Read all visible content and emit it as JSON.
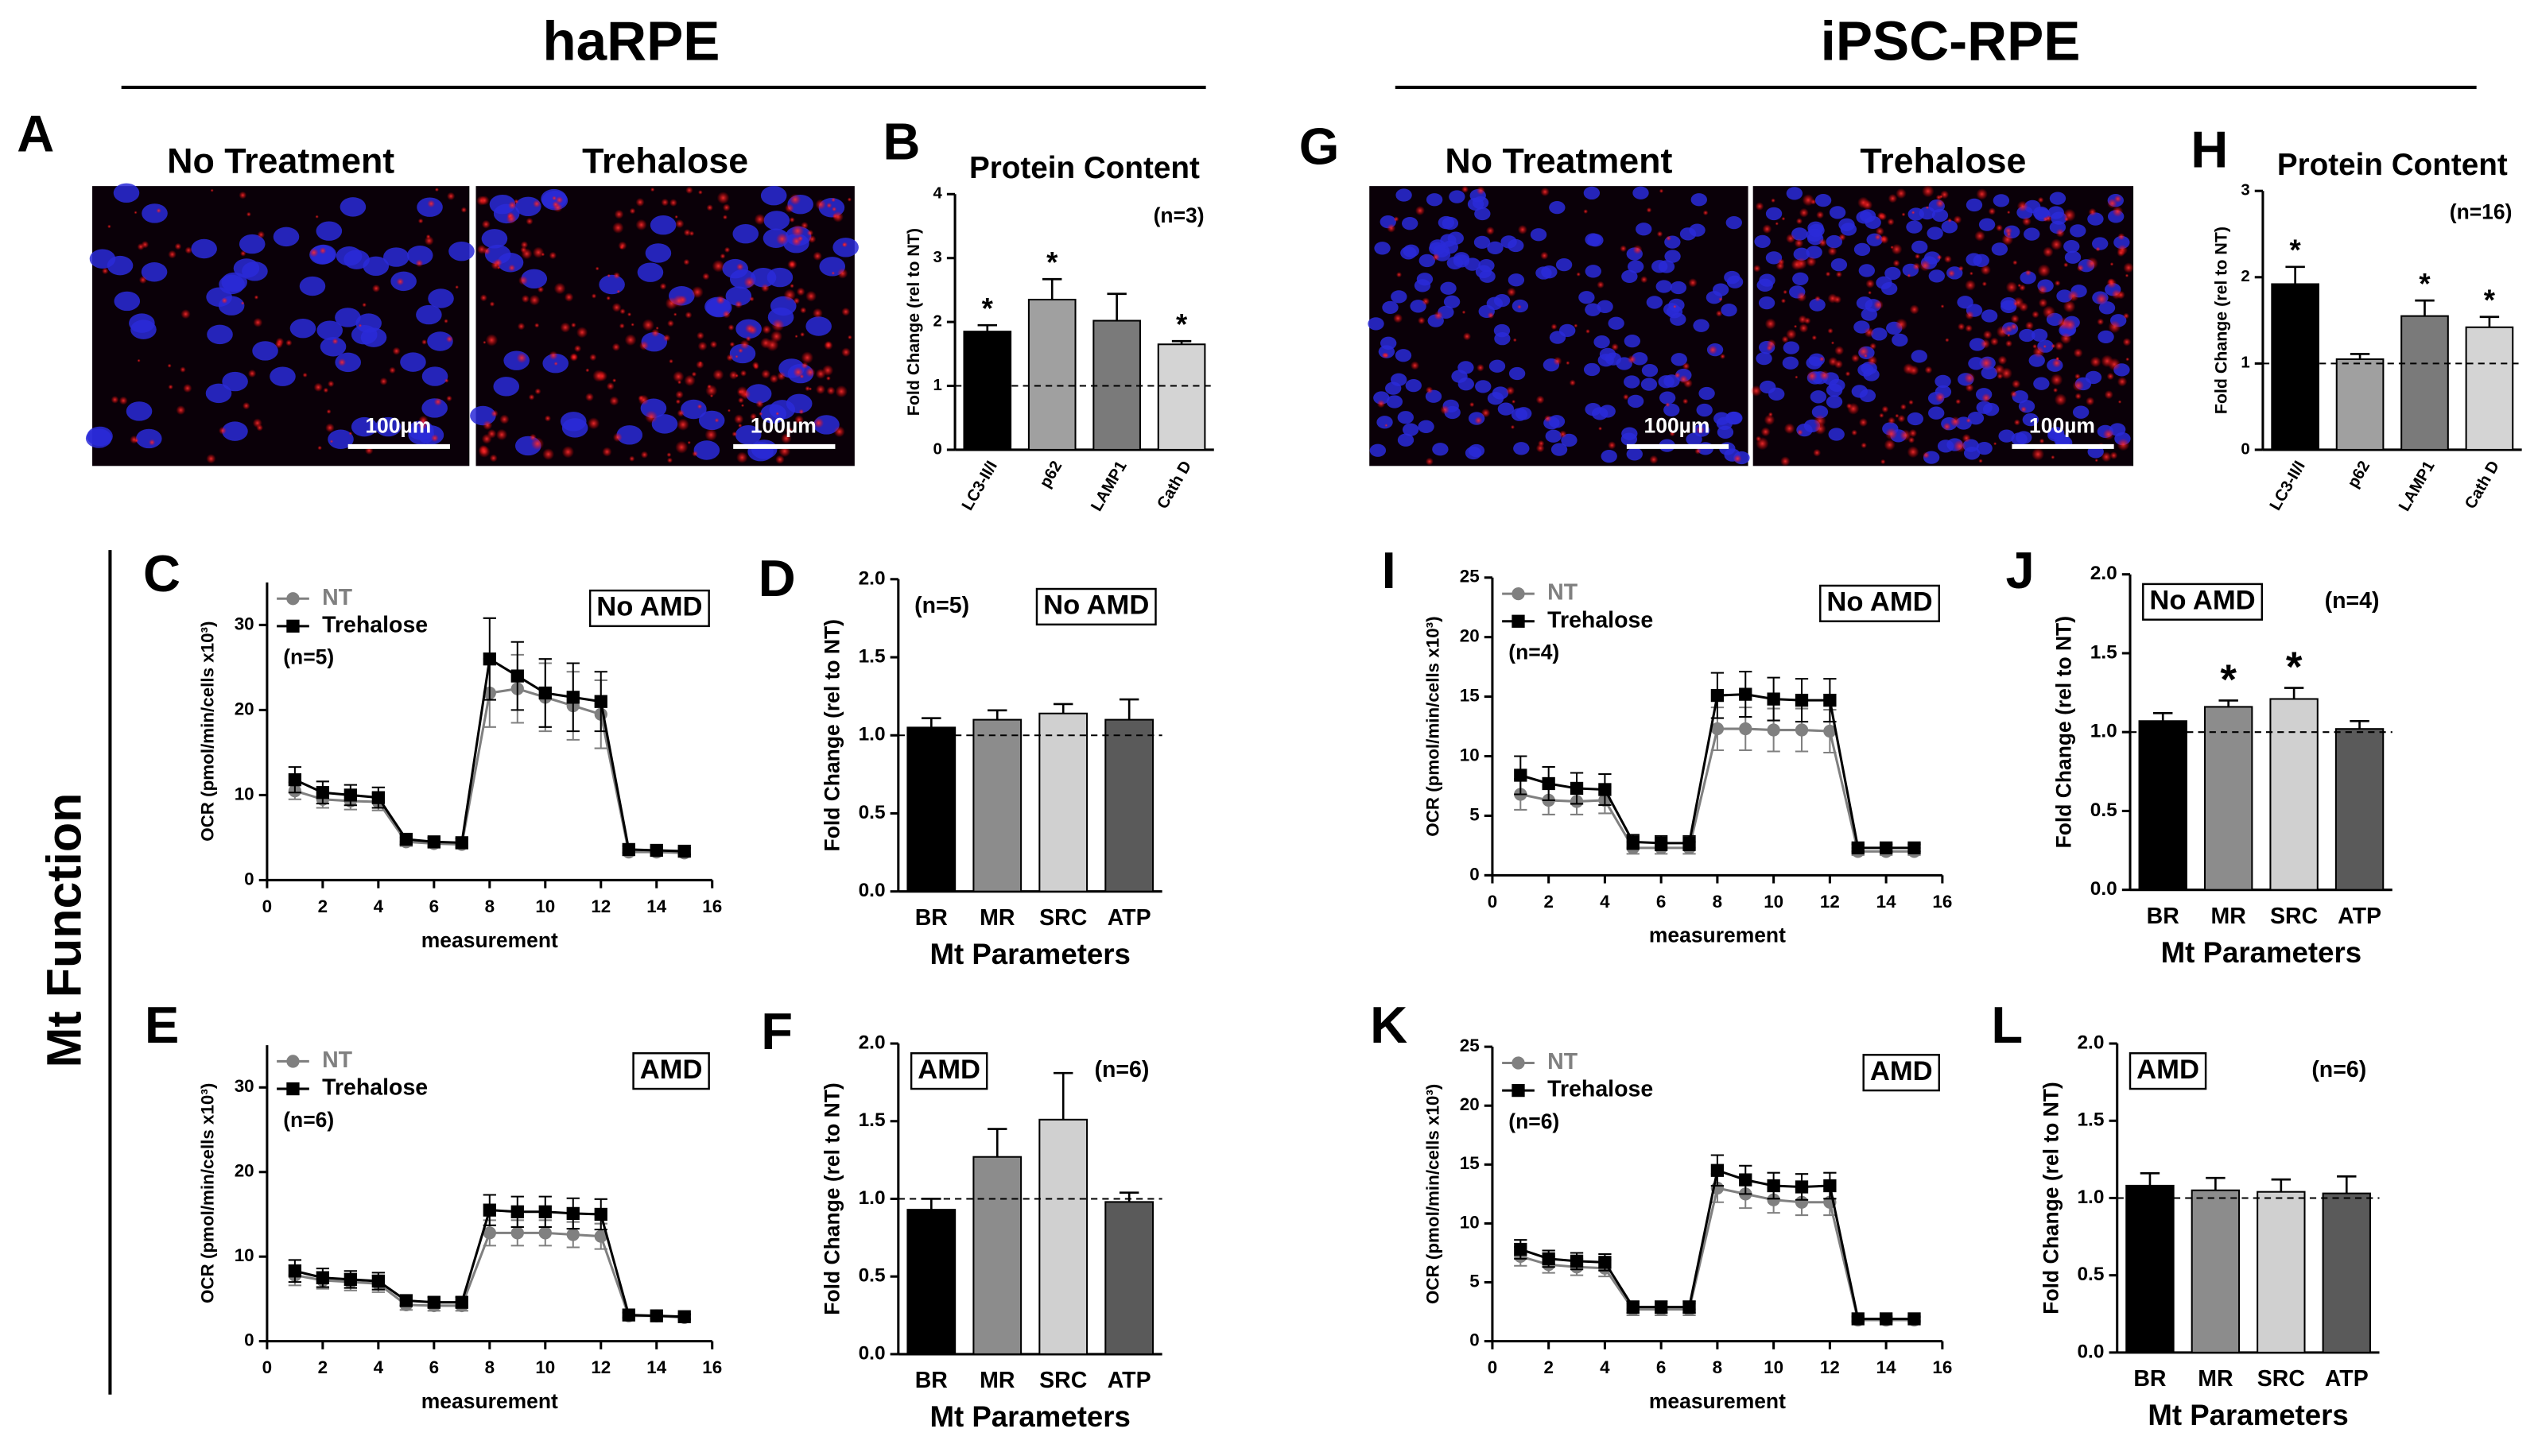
{
  "headings": [
    "haRPE",
    "iPSC-RPE"
  ],
  "section_label": "Mt Function",
  "images": [
    {
      "panel": "A",
      "labels": [
        "No Treatment",
        "Trehalose"
      ],
      "scale_bar": "100µm"
    },
    {
      "panel": "G",
      "labels": [
        "No Treatment",
        "Trehalose"
      ],
      "scale_bar": "100µm"
    }
  ],
  "chart_data": [
    {
      "type": "bar",
      "panel": "B",
      "title": "Protein Content",
      "y_label": "Fold Change (rel to NT)",
      "n_label": "(n=3)",
      "categories": [
        "LC3-II/I",
        "p62",
        "LAMP1",
        "Cath D"
      ],
      "values": [
        1.85,
        2.35,
        2.02,
        1.65
      ],
      "errors": [
        0.1,
        0.32,
        0.42,
        0.05
      ],
      "significance": [
        "*",
        "*",
        null,
        "*"
      ],
      "colors": [
        "#000000",
        "#a0a0a0",
        "#7a7a7a",
        "#d4d4d4"
      ],
      "ylim": [
        0,
        4
      ],
      "yticks": [
        0,
        1,
        2,
        3,
        4
      ],
      "ref_line": 1
    },
    {
      "type": "bar",
      "panel": "H",
      "title": "Protein Content",
      "y_label": "Fold Change (rel to NT)",
      "n_label": "(n=16)",
      "categories": [
        "LC3-II/I",
        "p62",
        "LAMP1",
        "Cath D"
      ],
      "values": [
        1.92,
        1.05,
        1.55,
        1.42
      ],
      "errors": [
        0.2,
        0.06,
        0.18,
        0.12
      ],
      "significance": [
        "*",
        null,
        "*",
        "*"
      ],
      "colors": [
        "#000000",
        "#a0a0a0",
        "#7a7a7a",
        "#d4d4d4"
      ],
      "ylim": [
        0,
        3
      ],
      "yticks": [
        0,
        1,
        2,
        3
      ],
      "ref_line": 1
    },
    {
      "type": "line",
      "panel": "C",
      "box_label": "No AMD",
      "n_label": "(n=5)",
      "x_label": "measurement",
      "y_label": "OCR (pmol/min/cells x10³)",
      "x": [
        1,
        2,
        3,
        4,
        5,
        6,
        7,
        8,
        9,
        10,
        11,
        12,
        13,
        14,
        15
      ],
      "series": [
        {
          "name": "NT",
          "color": "#808080",
          "marker": "circle",
          "values": [
            10.5,
            9.5,
            9.3,
            9.2,
            4.5,
            4.3,
            4.2,
            22,
            22.5,
            21.5,
            20.5,
            19.5,
            3.3,
            3.3,
            3.2
          ],
          "errors": [
            1,
            1,
            1,
            1,
            0.5,
            0.5,
            0.5,
            4,
            4,
            4,
            4,
            4,
            0.4,
            0.4,
            0.4
          ]
        },
        {
          "name": "Trehalose",
          "color": "#000000",
          "marker": "square",
          "values": [
            11.8,
            10.3,
            10,
            9.7,
            4.8,
            4.5,
            4.4,
            26,
            24,
            22,
            21.5,
            21,
            3.6,
            3.5,
            3.4
          ],
          "errors": [
            1.5,
            1.3,
            1.2,
            1.2,
            0.6,
            0.5,
            0.5,
            4.8,
            4,
            4,
            4,
            3.5,
            0.4,
            0.4,
            0.4
          ]
        }
      ],
      "xlim": [
        0,
        16
      ],
      "xticks": [
        0,
        2,
        4,
        6,
        8,
        10,
        12,
        14,
        16
      ],
      "ylim": [
        0,
        35
      ],
      "yticks": [
        0,
        10,
        20,
        30
      ]
    },
    {
      "type": "bar",
      "panel": "D",
      "box_label": "No AMD",
      "box_corner": "right",
      "n_label": "(n=5)",
      "x_label": "Mt Parameters",
      "y_label": "Fold Change (rel to NT)",
      "categories": [
        "BR",
        "MR",
        "SRC",
        "ATP"
      ],
      "values": [
        1.05,
        1.1,
        1.14,
        1.1
      ],
      "errors": [
        0.06,
        0.06,
        0.06,
        0.13
      ],
      "colors": [
        "#000000",
        "#8c8c8c",
        "#d0d0d0",
        "#5a5a5a"
      ],
      "ylim": [
        0,
        2
      ],
      "yticks": [
        {
          "value": 0,
          "label": "0.0"
        },
        {
          "value": 0.5,
          "label": "0.5"
        },
        {
          "value": 1,
          "label": "1.0"
        },
        {
          "value": 1.5,
          "label": "1.5"
        },
        {
          "value": 2,
          "label": "2.0"
        }
      ],
      "ref_line": 1
    },
    {
      "type": "line",
      "panel": "E",
      "box_label": "AMD",
      "n_label": "(n=6)",
      "x_label": "measurement",
      "y_label": "OCR (pmol/min/cells x10³)",
      "x": [
        1,
        2,
        3,
        4,
        5,
        6,
        7,
        8,
        9,
        10,
        11,
        12,
        13,
        14,
        15
      ],
      "series": [
        {
          "name": "NT",
          "color": "#808080",
          "marker": "circle",
          "values": [
            7.8,
            7.2,
            7,
            6.8,
            4.3,
            4.2,
            4.2,
            12.8,
            12.8,
            12.8,
            12.6,
            12.4,
            3,
            3,
            2.8
          ],
          "errors": [
            1.2,
            1,
            1,
            1,
            0.6,
            0.6,
            0.6,
            1.5,
            1.5,
            1.5,
            1.5,
            1.5,
            0.3,
            0.3,
            0.3
          ]
        },
        {
          "name": "Trehalose",
          "color": "#000000",
          "marker": "square",
          "values": [
            8.3,
            7.5,
            7.3,
            7.1,
            4.8,
            4.6,
            4.6,
            15.5,
            15.3,
            15.3,
            15.1,
            15,
            3.1,
            3,
            2.9
          ],
          "errors": [
            1.3,
            1.1,
            1,
            1,
            0.6,
            0.6,
            0.6,
            1.8,
            1.8,
            1.8,
            1.8,
            1.8,
            0.3,
            0.3,
            0.3
          ]
        }
      ],
      "xlim": [
        0,
        16
      ],
      "xticks": [
        0,
        2,
        4,
        6,
        8,
        10,
        12,
        14,
        16
      ],
      "ylim": [
        0,
        35
      ],
      "yticks": [
        0,
        10,
        20,
        30
      ]
    },
    {
      "type": "bar",
      "panel": "F",
      "box_label": "AMD",
      "box_corner": "left",
      "n_label": "(n=6)",
      "x_label": "Mt Parameters",
      "y_label": "Fold Change (rel to NT)",
      "categories": [
        "BR",
        "MR",
        "SRC",
        "ATP"
      ],
      "values": [
        0.93,
        1.27,
        1.51,
        0.98
      ],
      "errors": [
        0.07,
        0.18,
        0.3,
        0.06
      ],
      "colors": [
        "#000000",
        "#8c8c8c",
        "#d0d0d0",
        "#5a5a5a"
      ],
      "ylim": [
        0,
        2
      ],
      "yticks": [
        {
          "value": 0,
          "label": "0.0"
        },
        {
          "value": 0.5,
          "label": "0.5"
        },
        {
          "value": 1,
          "label": "1.0"
        },
        {
          "value": 1.5,
          "label": "1.5"
        },
        {
          "value": 2,
          "label": "2.0"
        }
      ],
      "ref_line": 1
    },
    {
      "type": "line",
      "panel": "I",
      "box_label": "No AMD",
      "n_label": "(n=4)",
      "x_label": "measurement",
      "y_label": "OCR (pmol/min/cells x10³)",
      "x": [
        1,
        2,
        3,
        4,
        5,
        6,
        7,
        8,
        9,
        10,
        11,
        12,
        13,
        14,
        15
      ],
      "series": [
        {
          "name": "NT",
          "color": "#808080",
          "marker": "circle",
          "values": [
            6.8,
            6.3,
            6.2,
            6.3,
            2.3,
            2.3,
            2.3,
            12.3,
            12.3,
            12.2,
            12.2,
            12.1,
            2,
            2,
            2
          ],
          "errors": [
            1.3,
            1.2,
            1.1,
            1.1,
            0.5,
            0.5,
            0.5,
            1.8,
            1.8,
            1.8,
            1.8,
            1.8,
            0.3,
            0.3,
            0.3
          ]
        },
        {
          "name": "Trehalose",
          "color": "#000000",
          "marker": "square",
          "values": [
            8.4,
            7.7,
            7.3,
            7.2,
            2.8,
            2.7,
            2.7,
            15.1,
            15.2,
            14.8,
            14.7,
            14.7,
            2.3,
            2.3,
            2.3
          ],
          "errors": [
            1.6,
            1.4,
            1.3,
            1.3,
            0.6,
            0.6,
            0.6,
            1.9,
            1.9,
            1.8,
            1.8,
            1.8,
            0.3,
            0.3,
            0.3
          ]
        }
      ],
      "xlim": [
        0,
        16
      ],
      "xticks": [
        0,
        2,
        4,
        6,
        8,
        10,
        12,
        14,
        16
      ],
      "ylim": [
        0,
        25
      ],
      "yticks": [
        0,
        5,
        10,
        15,
        20,
        25
      ]
    },
    {
      "type": "bar",
      "panel": "J",
      "box_label": "No AMD",
      "box_corner": "left",
      "n_label": "(n=4)",
      "x_label": "Mt Parameters",
      "y_label": "Fold Change (rel to NT)",
      "categories": [
        "BR",
        "MR",
        "SRC",
        "ATP"
      ],
      "values": [
        1.07,
        1.16,
        1.21,
        1.02
      ],
      "errors": [
        0.05,
        0.04,
        0.07,
        0.05
      ],
      "significance": [
        null,
        "*",
        "*",
        null
      ],
      "colors": [
        "#000000",
        "#8c8c8c",
        "#d0d0d0",
        "#5a5a5a"
      ],
      "ylim": [
        0,
        2
      ],
      "yticks": [
        {
          "value": 0,
          "label": "0.0"
        },
        {
          "value": 0.5,
          "label": "0.5"
        },
        {
          "value": 1,
          "label": "1.0"
        },
        {
          "value": 1.5,
          "label": "1.5"
        },
        {
          "value": 2,
          "label": "2.0"
        }
      ],
      "ref_line": 1
    },
    {
      "type": "line",
      "panel": "K",
      "box_label": "AMD",
      "n_label": "(n=6)",
      "x_label": "measurement",
      "y_label": "OCR (pmol/min/cells x10³)",
      "x": [
        1,
        2,
        3,
        4,
        5,
        6,
        7,
        8,
        9,
        10,
        11,
        12,
        13,
        14,
        15
      ],
      "series": [
        {
          "name": "NT",
          "color": "#808080",
          "marker": "circle",
          "values": [
            7.2,
            6.5,
            6.3,
            6.2,
            2.7,
            2.7,
            2.7,
            13,
            12.5,
            12,
            11.8,
            11.8,
            1.8,
            1.8,
            1.8
          ],
          "errors": [
            0.8,
            0.7,
            0.7,
            0.7,
            0.5,
            0.5,
            0.5,
            1.2,
            1.2,
            1.1,
            1.1,
            1.1,
            0.2,
            0.2,
            0.2
          ]
        },
        {
          "name": "Trehalose",
          "color": "#000000",
          "marker": "square",
          "values": [
            7.8,
            7,
            6.8,
            6.7,
            2.9,
            2.9,
            2.9,
            14.5,
            13.7,
            13.2,
            13.1,
            13.2,
            1.9,
            1.9,
            1.9
          ],
          "errors": [
            0.8,
            0.7,
            0.7,
            0.7,
            0.5,
            0.5,
            0.5,
            1.3,
            1.2,
            1.1,
            1.1,
            1.1,
            0.2,
            0.2,
            0.2
          ]
        }
      ],
      "xlim": [
        0,
        16
      ],
      "xticks": [
        0,
        2,
        4,
        6,
        8,
        10,
        12,
        14,
        16
      ],
      "ylim": [
        0,
        25
      ],
      "yticks": [
        0,
        5,
        10,
        15,
        20,
        25
      ]
    },
    {
      "type": "bar",
      "panel": "L",
      "box_label": "AMD",
      "box_corner": "left",
      "n_label": "(n=6)",
      "x_label": "Mt Parameters",
      "y_label": "Fold Change (rel to NT)",
      "categories": [
        "BR",
        "MR",
        "SRC",
        "ATP"
      ],
      "values": [
        1.08,
        1.05,
        1.04,
        1.03
      ],
      "errors": [
        0.08,
        0.08,
        0.08,
        0.11
      ],
      "colors": [
        "#000000",
        "#8c8c8c",
        "#d0d0d0",
        "#5a5a5a"
      ],
      "ylim": [
        0,
        2
      ],
      "yticks": [
        {
          "value": 0,
          "label": "0.0"
        },
        {
          "value": 0.5,
          "label": "0.5"
        },
        {
          "value": 1,
          "label": "1.0"
        },
        {
          "value": 1.5,
          "label": "1.5"
        },
        {
          "value": 2,
          "label": "2.0"
        }
      ],
      "ref_line": 1
    }
  ]
}
